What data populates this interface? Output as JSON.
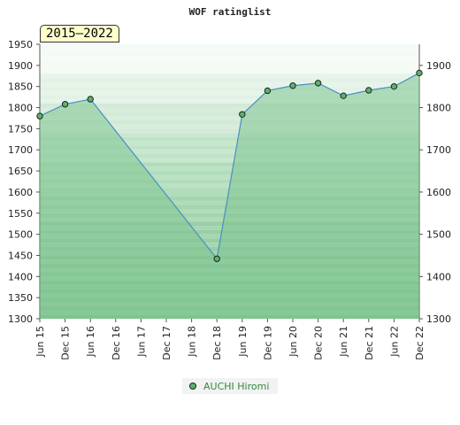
{
  "chart_data": {
    "type": "area",
    "title": "WOF ratinglist",
    "period_label": "2015–2022",
    "categories": [
      "Jun 15",
      "Dec 15",
      "Jun 16",
      "Dec 16",
      "Jun 17",
      "Dec 17",
      "Jun 18",
      "Dec 18",
      "Jun 19",
      "Dec 19",
      "Jun 20",
      "Dec 20",
      "Jun 21",
      "Dec 21",
      "Jun 22",
      "Dec 22"
    ],
    "series": [
      {
        "name": "AUCHI Hiromi",
        "values": [
          1780,
          1808,
          1820,
          null,
          null,
          null,
          null,
          1442,
          1784,
          1840,
          1852,
          1858,
          1828,
          1841,
          1850,
          1882
        ]
      }
    ],
    "y_left_ticks": [
      1300,
      1350,
      1400,
      1450,
      1500,
      1550,
      1600,
      1650,
      1700,
      1750,
      1800,
      1850,
      1900,
      1950
    ],
    "y_right_ticks": [
      1300,
      1400,
      1500,
      1600,
      1700,
      1800,
      1900
    ],
    "ylim": [
      1300,
      1950
    ],
    "legend_position": "bottom",
    "colors": {
      "fill": "#7dc48f",
      "line": "#4a90c2",
      "marker": "#5bb36a"
    }
  }
}
